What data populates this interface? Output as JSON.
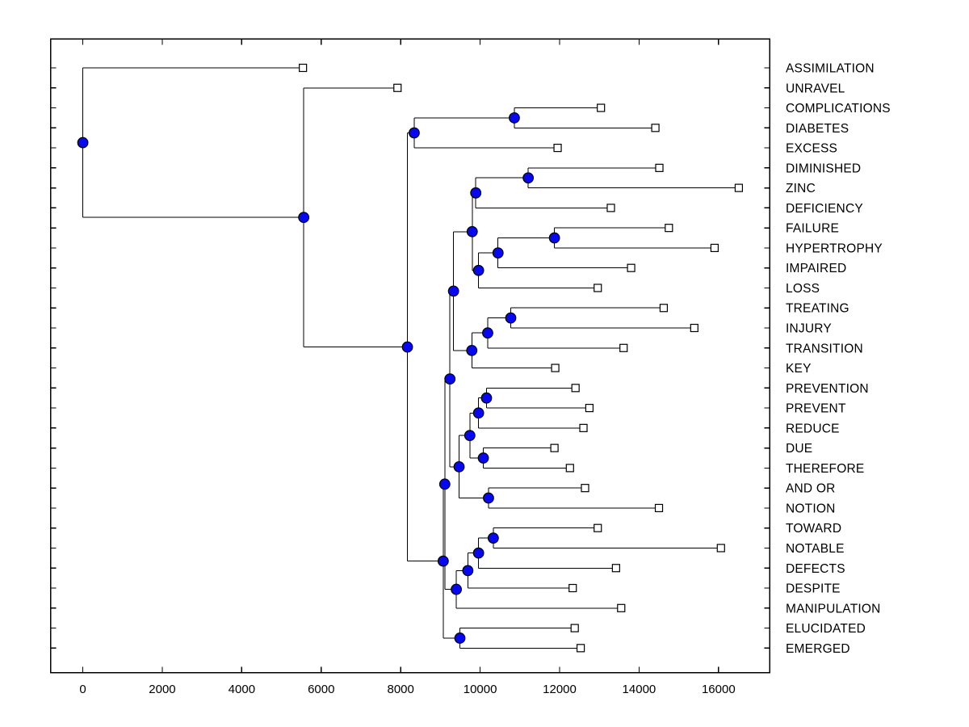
{
  "figure": {
    "background": "#ffffff"
  },
  "chart_data": {
    "type": "dendrogram",
    "title": "",
    "xlabel": "",
    "ylabel": "",
    "orientation": "horizontal, root at left, leaves on right",
    "grid": false,
    "legend": null,
    "xlim": [
      -810,
      17290
    ],
    "x_ticks": [
      0,
      2000,
      4000,
      6000,
      8000,
      10000,
      12000,
      14000,
      16000
    ],
    "leaves": [
      {
        "label": "ASSIMILATION",
        "value": 5540
      },
      {
        "label": "UNRAVEL",
        "value": 7920
      },
      {
        "label": "COMPLICATIONS",
        "value": 13040
      },
      {
        "label": "DIABETES",
        "value": 14410
      },
      {
        "label": "EXCESS",
        "value": 11950
      },
      {
        "label": "DIMINISHED",
        "value": 14510
      },
      {
        "label": "ZINC",
        "value": 16510
      },
      {
        "label": "DEFICIENCY",
        "value": 13290
      },
      {
        "label": "FAILURE",
        "value": 14750
      },
      {
        "label": "HYPERTROPHY",
        "value": 15900
      },
      {
        "label": "IMPAIRED",
        "value": 13800
      },
      {
        "label": "LOSS",
        "value": 12960
      },
      {
        "label": "TREATING",
        "value": 14620
      },
      {
        "label": "INJURY",
        "value": 15390
      },
      {
        "label": "TRANSITION",
        "value": 13610
      },
      {
        "label": "KEY",
        "value": 11890
      },
      {
        "label": "PREVENTION",
        "value": 12400
      },
      {
        "label": "PREVENT",
        "value": 12750
      },
      {
        "label": "REDUCE",
        "value": 12600
      },
      {
        "label": "DUE",
        "value": 11870
      },
      {
        "label": "THEREFORE",
        "value": 12260
      },
      {
        "label": "AND OR",
        "value": 12640
      },
      {
        "label": "NOTION",
        "value": 14500
      },
      {
        "label": "TOWARD",
        "value": 12960
      },
      {
        "label": "NOTABLE",
        "value": 16060
      },
      {
        "label": "DEFECTS",
        "value": 13420
      },
      {
        "label": "DESPITE",
        "value": 12330
      },
      {
        "label": "MANIPULATION",
        "value": 13550
      },
      {
        "label": "ELUCIDATED",
        "value": 12380
      },
      {
        "label": "EMERGED",
        "value": 12530
      }
    ],
    "merges": [
      {
        "id": "cd",
        "children": [
          "COMPLICATIONS",
          "DIABETES"
        ],
        "value": 10860
      },
      {
        "id": "cde",
        "children": [
          "cd",
          "EXCESS"
        ],
        "value": 8340
      },
      {
        "id": "dz",
        "children": [
          "DIMINISHED",
          "ZINC"
        ],
        "value": 11210
      },
      {
        "id": "dzd",
        "children": [
          "dz",
          "DEFICIENCY"
        ],
        "value": 9890
      },
      {
        "id": "fh",
        "children": [
          "FAILURE",
          "HYPERTROPHY"
        ],
        "value": 11870
      },
      {
        "id": "fhi",
        "children": [
          "fh",
          "IMPAIRED"
        ],
        "value": 10450
      },
      {
        "id": "fhil",
        "children": [
          "fhi",
          "LOSS"
        ],
        "value": 9960
      },
      {
        "id": "b",
        "children": [
          "dzd",
          "fhil"
        ],
        "value": 9800
      },
      {
        "id": "ti",
        "children": [
          "TREATING",
          "INJURY"
        ],
        "value": 10770
      },
      {
        "id": "tit",
        "children": [
          "ti",
          "TRANSITION"
        ],
        "value": 10190
      },
      {
        "id": "titk",
        "children": [
          "tit",
          "KEY"
        ],
        "value": 9790
      },
      {
        "id": "c",
        "children": [
          "b",
          "titk"
        ],
        "value": 9330
      },
      {
        "id": "pp",
        "children": [
          "PREVENTION",
          "PREVENT"
        ],
        "value": 10160
      },
      {
        "id": "ppr",
        "children": [
          "pp",
          "REDUCE"
        ],
        "value": 9960
      },
      {
        "id": "dt",
        "children": [
          "DUE",
          "THEREFORE"
        ],
        "value": 10080
      },
      {
        "id": "pprdt",
        "children": [
          "ppr",
          "dt"
        ],
        "value": 9740
      },
      {
        "id": "an",
        "children": [
          "AND OR",
          "NOTION"
        ],
        "value": 10210
      },
      {
        "id": "e",
        "children": [
          "pprdt",
          "an"
        ],
        "value": 9470
      },
      {
        "id": "d",
        "children": [
          "c",
          "e"
        ],
        "value": 9240
      },
      {
        "id": "tn",
        "children": [
          "TOWARD",
          "NOTABLE"
        ],
        "value": 10330
      },
      {
        "id": "tnd",
        "children": [
          "tn",
          "DEFECTS"
        ],
        "value": 9960
      },
      {
        "id": "tndd",
        "children": [
          "tnd",
          "DESPITE"
        ],
        "value": 9690
      },
      {
        "id": "i",
        "children": [
          "tndd",
          "MANIPULATION"
        ],
        "value": 9400
      },
      {
        "id": "g",
        "children": [
          "d",
          "i"
        ],
        "value": 9110
      },
      {
        "id": "ee",
        "children": [
          "ELUCIDATED",
          "EMERGED"
        ],
        "value": 9490
      },
      {
        "id": "h",
        "children": [
          "g",
          "ee"
        ],
        "value": 9070
      },
      {
        "id": "k",
        "children": [
          "cde",
          "h"
        ],
        "value": 8170
      },
      {
        "id": "n2",
        "children": [
          "UNRAVEL",
          "k"
        ],
        "value": 5560
      },
      {
        "id": "root",
        "children": [
          "ASSIMILATION",
          "n2"
        ],
        "value": 0
      }
    ],
    "colors": {
      "link": "#000000",
      "node_fill": "#0808f0",
      "node_edge": "#000010",
      "leaf_fill": "#ffffff",
      "leaf_edge": "#000000",
      "axis": "#000000",
      "text": "#000000"
    },
    "markers": {
      "internal_node": "filled-circle",
      "leaf": "open-square"
    }
  }
}
